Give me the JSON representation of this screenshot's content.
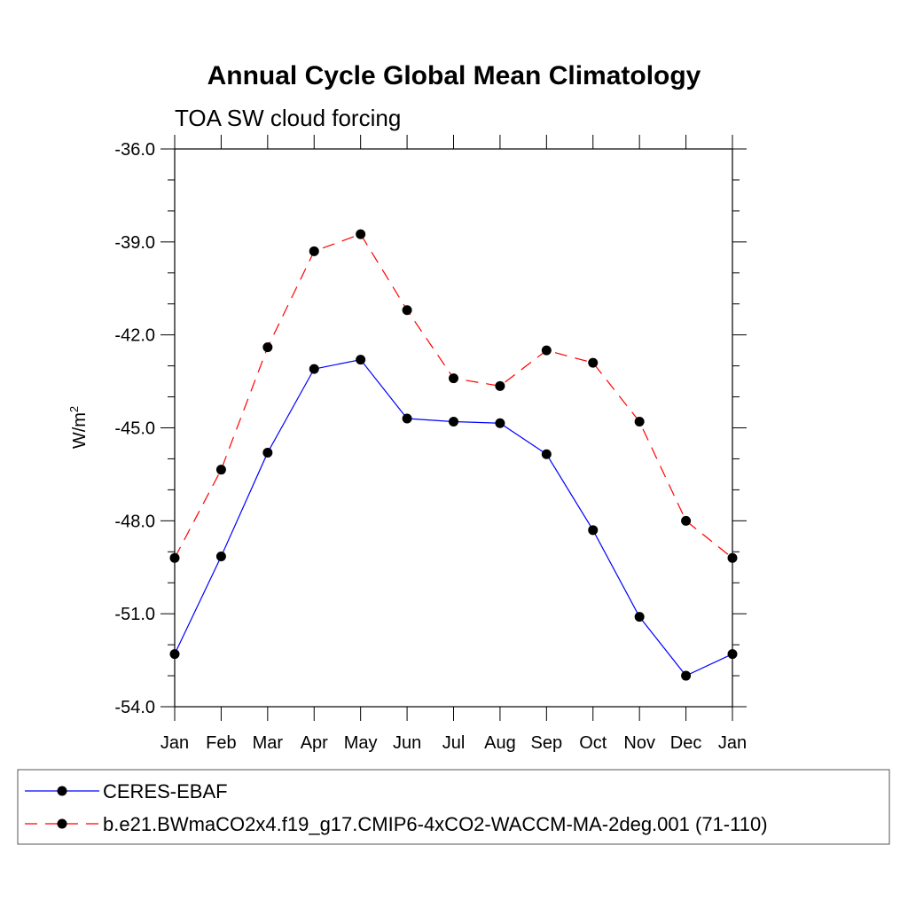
{
  "chart_data": {
    "type": "line",
    "title": "Annual Cycle Global Mean Climatology",
    "subtitle": "TOA SW cloud forcing",
    "xlabel": "",
    "ylabel": "W/m",
    "ylabel_superscript": "2",
    "categories": [
      "Jan",
      "Feb",
      "Mar",
      "Apr",
      "May",
      "Jun",
      "Jul",
      "Aug",
      "Sep",
      "Oct",
      "Nov",
      "Dec",
      "Jan"
    ],
    "ylim": [
      -54.0,
      -36.0
    ],
    "yticks": [
      -54.0,
      -51.0,
      -48.0,
      -45.0,
      -42.0,
      -39.0,
      -36.0
    ],
    "ytick_labels": [
      "-54.0",
      "-51.0",
      "-48.0",
      "-45.0",
      "-42.0",
      "-39.0",
      "-36.0"
    ],
    "y_minor_step": 1.0,
    "grid": false,
    "legend_position": "bottom",
    "series": [
      {
        "name": "CERES-EBAF",
        "color": "#0000ff",
        "dash": "solid",
        "marker": "circle",
        "values": [
          -52.3,
          -49.15,
          -45.8,
          -43.1,
          -42.8,
          -44.7,
          -44.8,
          -44.85,
          -45.85,
          -48.3,
          -51.1,
          -53.0,
          -52.3
        ]
      },
      {
        "name": "b.e21.BWmaCO2x4.f19_g17.CMIP6-4xCO2-WACCM-MA-2deg.001 (71-110)",
        "color": "#ff0000",
        "dash": "dashed",
        "marker": "circle",
        "values": [
          -49.2,
          -46.35,
          -42.4,
          -39.3,
          -38.75,
          -41.2,
          -43.4,
          -43.65,
          -42.5,
          -42.9,
          -44.8,
          -48.0,
          -49.2
        ]
      }
    ]
  }
}
